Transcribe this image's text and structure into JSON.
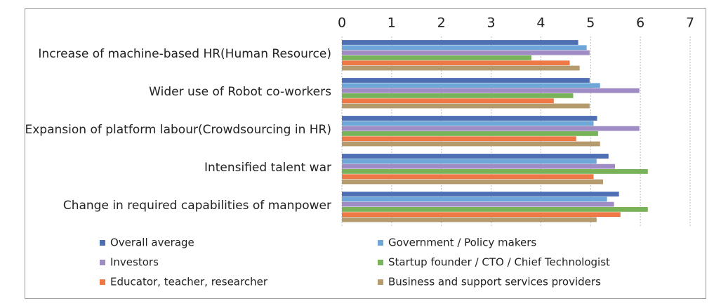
{
  "chart_data": {
    "type": "barh",
    "categories": [
      "Increase of machine-based HR(Human Resource)",
      "Wider use of Robot co-workers",
      "Expansion of platform labour(Crowdsourcing in HR)",
      "Intensified talent war",
      "Change in required capabilities of manpower"
    ],
    "series": [
      {
        "name": "Overall average",
        "color": "#4f6fb4",
        "values": [
          4.75,
          4.98,
          5.13,
          5.36,
          5.57
        ]
      },
      {
        "name": "Government / Policy makers",
        "color": "#6ea6d8",
        "values": [
          4.92,
          5.19,
          5.06,
          5.12,
          5.33
        ]
      },
      {
        "name": "Investors",
        "color": "#a08cc4",
        "values": [
          4.98,
          5.98,
          5.98,
          5.49,
          5.47
        ]
      },
      {
        "name": "Startup founder / CTO / Chief Technologist",
        "color": "#78b35a",
        "values": [
          3.81,
          4.65,
          5.15,
          6.15,
          6.15
        ]
      },
      {
        "name": "Educator, teacher, researcher",
        "color": "#ee7846",
        "values": [
          4.58,
          4.26,
          4.71,
          5.06,
          5.6
        ]
      },
      {
        "name": "Business and support services providers",
        "color": "#b59a6e",
        "values": [
          4.78,
          4.98,
          5.19,
          5.25,
          5.12
        ]
      }
    ],
    "xlim": [
      0,
      7
    ],
    "xticks": [
      0,
      1,
      2,
      3,
      4,
      5,
      6,
      7
    ],
    "grid": true,
    "legend": "bottom"
  }
}
